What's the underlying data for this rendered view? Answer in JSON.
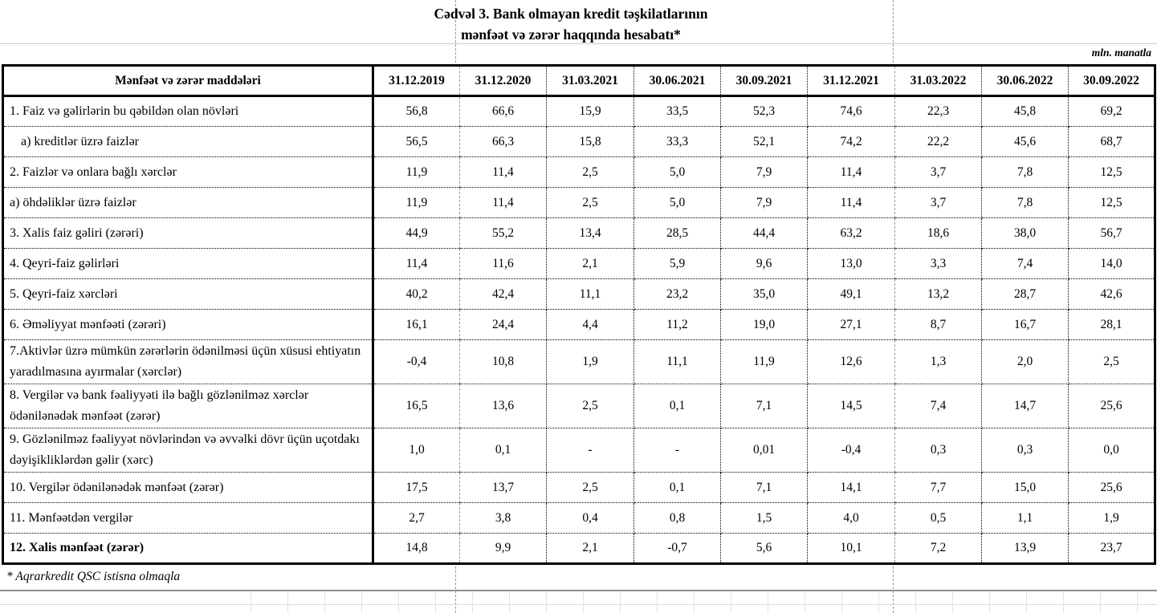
{
  "title": {
    "line1": "Cədvəl 3. Bank olmayan kredit təşkilatlarının",
    "line2": "mənfəət və zərər haqqında hesabatı*"
  },
  "unit_note": "mln. manatla",
  "footnote": "* Aqrarkredit QSC istisna olmaqla",
  "colors": {
    "table_border": "#000000",
    "page_break_dash": "#9a9a9a",
    "faint_grid": "#e3e3e3"
  },
  "table": {
    "columns": [
      "Mənfəət və zərər maddələri",
      "31.12.2019",
      "31.12.2020",
      "31.03.2021",
      "30.06.2021",
      "30.09.2021",
      "31.12.2021",
      "31.03.2022",
      "30.06.2022",
      "30.09.2022"
    ],
    "rows": [
      {
        "label": "1. Faiz və gəlirlərin bu qəbildən olan növləri",
        "values": [
          "56,8",
          "66,6",
          "15,9",
          "33,5",
          "52,3",
          "74,6",
          "22,3",
          "45,8",
          "69,2"
        ],
        "indent": false,
        "tall": false,
        "bold": false
      },
      {
        "label": "a) kreditlər üzrə faizlər",
        "values": [
          "56,5",
          "66,3",
          "15,8",
          "33,3",
          "52,1",
          "74,2",
          "22,2",
          "45,6",
          "68,7"
        ],
        "indent": true,
        "tall": false,
        "bold": false
      },
      {
        "label": "2. Faizlər və onlara bağlı xərclər",
        "values": [
          "11,9",
          "11,4",
          "2,5",
          "5,0",
          "7,9",
          "11,4",
          "3,7",
          "7,8",
          "12,5"
        ],
        "indent": false,
        "tall": false,
        "bold": false
      },
      {
        "label": "a) öhdəliklər üzrə faizlər",
        "values": [
          "11,9",
          "11,4",
          "2,5",
          "5,0",
          "7,9",
          "11,4",
          "3,7",
          "7,8",
          "12,5"
        ],
        "indent": false,
        "tall": false,
        "bold": false
      },
      {
        "label": "3. Xalis faiz gəliri (zərəri)",
        "values": [
          "44,9",
          "55,2",
          "13,4",
          "28,5",
          "44,4",
          "63,2",
          "18,6",
          "38,0",
          "56,7"
        ],
        "indent": false,
        "tall": false,
        "bold": false
      },
      {
        "label": "4. Qeyri-faiz gəlirləri",
        "values": [
          "11,4",
          "11,6",
          "2,1",
          "5,9",
          "9,6",
          "13,0",
          "3,3",
          "7,4",
          "14,0"
        ],
        "indent": false,
        "tall": false,
        "bold": false
      },
      {
        "label": "5. Qeyri-faiz xərcləri",
        "values": [
          "40,2",
          "42,4",
          "11,1",
          "23,2",
          "35,0",
          "49,1",
          "13,2",
          "28,7",
          "42,6"
        ],
        "indent": false,
        "tall": false,
        "bold": false
      },
      {
        "label": "6. Əməliyyat mənfəəti (zərəri)",
        "values": [
          "16,1",
          "24,4",
          "4,4",
          "11,2",
          "19,0",
          "27,1",
          "8,7",
          "16,7",
          "28,1"
        ],
        "indent": false,
        "tall": false,
        "bold": false
      },
      {
        "label": "7.Aktivlər üzrə mümkün zərərlərin ödənilməsi üçün xüsusi ehtiyatın yaradılmasına ayırmalar (xərclər)",
        "values": [
          "-0,4",
          "10,8",
          "1,9",
          "11,1",
          "11,9",
          "12,6",
          "1,3",
          "2,0",
          "2,5"
        ],
        "indent": false,
        "tall": true,
        "bold": false
      },
      {
        "label": "8. Vergilər və bank fəaliyyəti ilə bağlı gözlənilməz xərclər ödənilənədək mənfəət (zərər)",
        "values": [
          "16,5",
          "13,6",
          "2,5",
          "0,1",
          "7,1",
          "14,5",
          "7,4",
          "14,7",
          "25,6"
        ],
        "indent": false,
        "tall": true,
        "bold": false
      },
      {
        "label": "9. Gözlənilməz fəaliyyət növlərindən və əvvəlki dövr üçün uçotdakı dəyişikliklərdən gəlir (xərc)",
        "values": [
          "1,0",
          "0,1",
          "-",
          "-",
          "0,01",
          "-0,4",
          "0,3",
          "0,3",
          "0,0"
        ],
        "indent": false,
        "tall": true,
        "bold": false
      },
      {
        "label": "10. Vergilər ödənilənədək mənfəət (zərər)",
        "values": [
          "17,5",
          "13,7",
          "2,5",
          "0,1",
          "7,1",
          "14,1",
          "7,7",
          "15,0",
          "25,6"
        ],
        "indent": false,
        "tall": false,
        "bold": false
      },
      {
        "label": "11. Mənfəətdən vergilər",
        "values": [
          "2,7",
          "3,8",
          "0,4",
          "0,8",
          "1,5",
          "4,0",
          "0,5",
          "1,1",
          "1,9"
        ],
        "indent": false,
        "tall": false,
        "bold": false
      },
      {
        "label": "12. Xalis mənfəət (zərər)",
        "values": [
          "14,8",
          "9,9",
          "2,1",
          "-0,7",
          "5,6",
          "10,1",
          "7,2",
          "13,9",
          "23,7"
        ],
        "indent": false,
        "tall": false,
        "bold": true
      }
    ]
  }
}
